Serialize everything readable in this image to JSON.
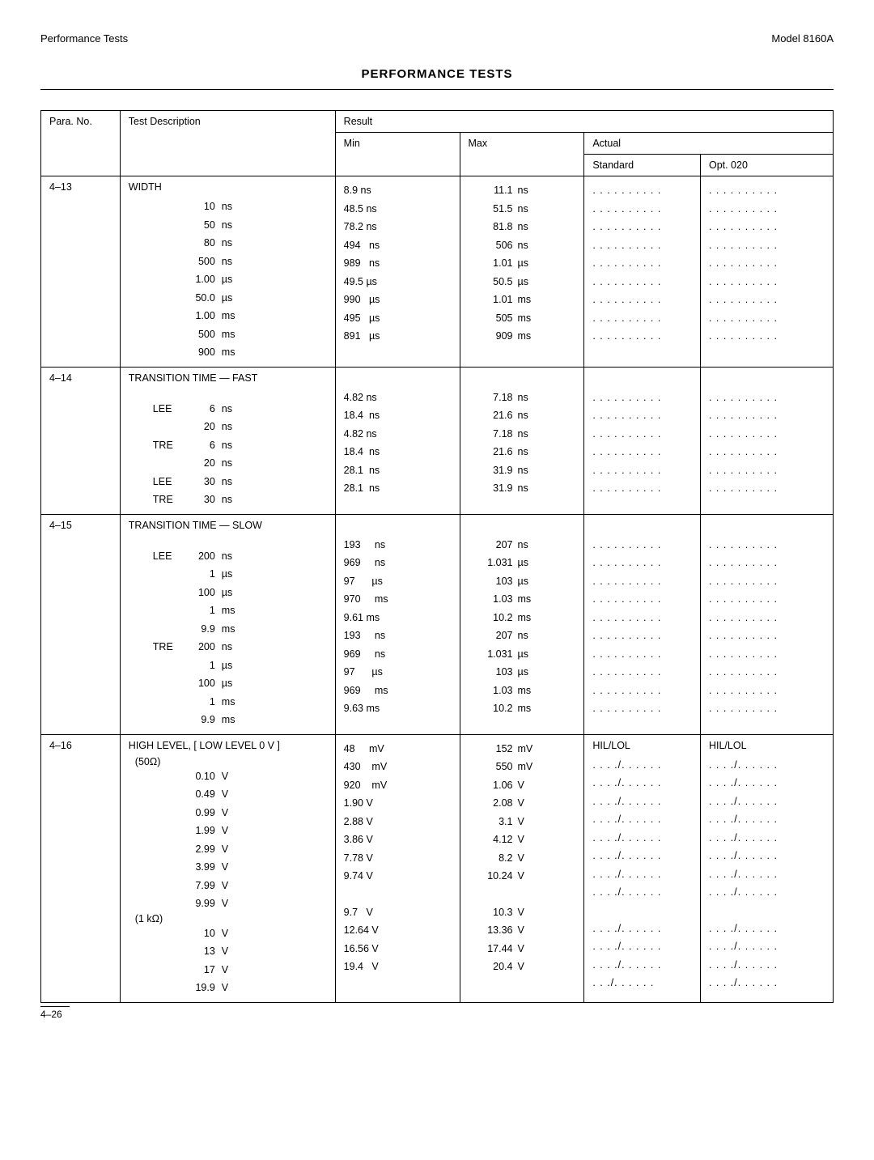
{
  "header": {
    "left": "Performance Tests",
    "right": "Model 8160A"
  },
  "title": "PERFORMANCE TESTS",
  "columns": {
    "para": "Para. No.",
    "desc": "Test Description",
    "result": "Result",
    "actual": "Actual",
    "min": "Min",
    "max": "Max",
    "standard": "Standard",
    "opt": "Opt. 020"
  },
  "sections": [
    {
      "para": "4–13",
      "heading": "WIDTH",
      "actual_header": "",
      "rows": [
        {
          "label": "",
          "dval": "10",
          "dunit": "ns",
          "min": "8.9 ns",
          "maxv": "11.1",
          "maxu": "ns",
          "a1": ". . . . . . . . . .",
          "a2": ". . . . . . . . . ."
        },
        {
          "label": "",
          "dval": "50",
          "dunit": "ns",
          "min": "48.5 ns",
          "maxv": "51.5",
          "maxu": "ns",
          "a1": ". . . . . . . . . .",
          "a2": ". . . . . . . . . ."
        },
        {
          "label": "",
          "dval": "80",
          "dunit": "ns",
          "min": "78.2 ns",
          "maxv": "81.8",
          "maxu": "ns",
          "a1": ". . . . . . . . . .",
          "a2": ". . . . . . . . . ."
        },
        {
          "label": "",
          "dval": "500",
          "dunit": "ns",
          "min": "494   ns",
          "maxv": "506",
          "maxu": "ns",
          "a1": ". . . . . . . . . .",
          "a2": ". . . . . . . . . ."
        },
        {
          "label": "",
          "dval": "1.00",
          "dunit": "µs",
          "min": "989   ns",
          "maxv": "1.01",
          "maxu": "µs",
          "a1": ". . . . . . . . . .",
          "a2": ". . . . . . . . . ."
        },
        {
          "label": "",
          "dval": "50.0",
          "dunit": "µs",
          "min": "49.5 µs",
          "maxv": "50.5",
          "maxu": "µs",
          "a1": ". . . . . . . . . .",
          "a2": ". . . . . . . . . ."
        },
        {
          "label": "",
          "dval": "1.00",
          "dunit": "ms",
          "min": "990   µs",
          "maxv": "1.01",
          "maxu": "ms",
          "a1": ". . . . . . . . . .",
          "a2": ". . . . . . . . . ."
        },
        {
          "label": "",
          "dval": "500",
          "dunit": "ms",
          "min": "495   µs",
          "maxv": "505",
          "maxu": "ms",
          "a1": ". . . . . . . . . .",
          "a2": ". . . . . . . . . ."
        },
        {
          "label": "",
          "dval": "900",
          "dunit": "ms",
          "min": "891   µs",
          "maxv": "909",
          "maxu": "ms",
          "a1": ". . . . . . . . . .",
          "a2": ". . . . . . . . . ."
        }
      ]
    },
    {
      "para": "4–14",
      "heading": "TRANSITION TIME — FAST",
      "spacer": true,
      "rows": [
        {
          "label": "LEE",
          "dval": "6",
          "dunit": "ns",
          "min": "4.82 ns",
          "maxv": "7.18",
          "maxu": "ns",
          "a1": ". . . . . . . . . .",
          "a2": ". . . . . . . . . ."
        },
        {
          "label": "",
          "dval": "20",
          "dunit": "ns",
          "min": "18.4  ns",
          "maxv": "21.6",
          "maxu": "ns",
          "a1": ". . . . . . . . . .",
          "a2": ". . . . . . . . . ."
        },
        {
          "label": "TRE",
          "dval": "6",
          "dunit": "ns",
          "min": "4.82 ns",
          "maxv": "7.18",
          "maxu": "ns",
          "a1": ". . . . . . . . . .",
          "a2": ". . . . . . . . . ."
        },
        {
          "label": "",
          "dval": "20",
          "dunit": "ns",
          "min": "18.4  ns",
          "maxv": "21.6",
          "maxu": "ns",
          "a1": ". . . . . . . . . .",
          "a2": ". . . . . . . . . ."
        },
        {
          "label": "LEE",
          "dval": "30",
          "dunit": "ns",
          "min": "28.1  ns",
          "maxv": "31.9",
          "maxu": "ns",
          "a1": ". . . . . . . . . .",
          "a2": ". . . . . . . . . ."
        },
        {
          "label": "TRE",
          "dval": "30",
          "dunit": "ns",
          "min": "28.1  ns",
          "maxv": "31.9",
          "maxu": "ns",
          "a1": ". . . . . . . . . .",
          "a2": ". . . . . . . . . ."
        }
      ]
    },
    {
      "para": "4–15",
      "heading": "TRANSITION TIME — SLOW",
      "spacer": true,
      "rows": [
        {
          "label": "LEE",
          "dval": "200",
          "dunit": "ns",
          "min": "193     ns",
          "maxv": "207",
          "maxu": "ns",
          "a1": ". . . . . . . . . .",
          "a2": ". . . . . . . . . ."
        },
        {
          "label": "",
          "dval": "1",
          "dunit": "µs",
          "min": "969     ns",
          "maxv": "1.031",
          "maxu": "µs",
          "a1": ". . . . . . . . . .",
          "a2": ". . . . . . . . . ."
        },
        {
          "label": "",
          "dval": "100",
          "dunit": "µs",
          "min": "97      µs",
          "maxv": "103",
          "maxu": "µs",
          "a1": ". . . . . . . . . .",
          "a2": ". . . . . . . . . ."
        },
        {
          "label": "",
          "dval": "1",
          "dunit": "ms",
          "min": "970     ms",
          "maxv": "1.03",
          "maxu": "ms",
          "a1": ". . . . . . . . . .",
          "a2": ". . . . . . . . . ."
        },
        {
          "label": "",
          "dval": "9.9",
          "dunit": "ms",
          "min": "9.61 ms",
          "maxv": "10.2",
          "maxu": "ms",
          "a1": ". . . . . . . . . .",
          "a2": ". . . . . . . . . ."
        },
        {
          "label": "TRE",
          "dval": "200",
          "dunit": "ns",
          "min": "193     ns",
          "maxv": "207",
          "maxu": "ns",
          "a1": ". . . . . . . . . .",
          "a2": ". . . . . . . . . ."
        },
        {
          "label": "",
          "dval": "1",
          "dunit": "µs",
          "min": "969     ns",
          "maxv": "1.031",
          "maxu": "µs",
          "a1": ". . . . . . . . . .",
          "a2": ". . . . . . . . . ."
        },
        {
          "label": "",
          "dval": "100",
          "dunit": "µs",
          "min": "97      µs",
          "maxv": "103",
          "maxu": "µs",
          "a1": ". . . . . . . . . .",
          "a2": ". . . . . . . . . ."
        },
        {
          "label": "",
          "dval": "1",
          "dunit": "ms",
          "min": "969     ms",
          "maxv": "1.03",
          "maxu": "ms",
          "a1": ". . . . . . . . . .",
          "a2": ". . . . . . . . . ."
        },
        {
          "label": "",
          "dval": "9.9",
          "dunit": "ms",
          "min": "9.63 ms",
          "maxv": "10.2",
          "maxu": "ms",
          "a1": ". . . . . . . . . .",
          "a2": ". . . . . . . . . ."
        }
      ]
    },
    {
      "para": "4–16",
      "heading": "HIGH LEVEL, [ LOW LEVEL 0 V ]",
      "sub": "(50Ω)",
      "actual_hdr1": "HIL/LOL",
      "actual_hdr2": "HIL/LOL",
      "rows": [
        {
          "label": "",
          "dval": "0.10",
          "dunit": "V",
          "min": "48     mV",
          "maxv": "152",
          "maxu": "mV",
          "a1": ". . . ./. . . . . .",
          "a2": ". . . ./. . . . . ."
        },
        {
          "label": "",
          "dval": "0.49",
          "dunit": "V",
          "min": "430    mV",
          "maxv": "550",
          "maxu": "mV",
          "a1": ". . . ./. . . . . .",
          "a2": ". . . ./. . . . . ."
        },
        {
          "label": "",
          "dval": "0.99",
          "dunit": "V",
          "min": "920    mV",
          "maxv": "1.06",
          "maxu": "V",
          "a1": ". . . ./. . . . . .",
          "a2": ". . . ./. . . . . ."
        },
        {
          "label": "",
          "dval": "1.99",
          "dunit": "V",
          "min": "1.90 V",
          "maxv": "2.08",
          "maxu": "V",
          "a1": ". . . ./. . . . . .",
          "a2": ". . . ./. . . . . ."
        },
        {
          "label": "",
          "dval": "2.99",
          "dunit": "V",
          "min": "2.88 V",
          "maxv": "3.1",
          "maxu": "V",
          "a1": ". . . ./. . . . . .",
          "a2": ". . . ./. . . . . ."
        },
        {
          "label": "",
          "dval": "3.99",
          "dunit": "V",
          "min": "3.86 V",
          "maxv": "4.12",
          "maxu": "V",
          "a1": ". . . ./. . . . . .",
          "a2": ". . . ./. . . . . ."
        },
        {
          "label": "",
          "dval": "7.99",
          "dunit": "V",
          "min": "7.78 V",
          "maxv": "8.2",
          "maxu": "V",
          "a1": ". . . ./. . . . . .",
          "a2": ". . . ./. . . . . ."
        },
        {
          "label": "",
          "dval": "9.99",
          "dunit": "V",
          "min": "9.74 V",
          "maxv": "10.24",
          "maxu": "V",
          "a1": ". . . ./. . . . . .",
          "a2": ". . . ./. . . . . ."
        }
      ],
      "sub2": "(1 kΩ)",
      "rows2": [
        {
          "label": "",
          "dval": "10",
          "dunit": "V",
          "min": "9.7   V",
          "maxv": "10.3",
          "maxu": "V",
          "a1": ". . . ./. . . . . .",
          "a2": ". . . ./. . . . . ."
        },
        {
          "label": "",
          "dval": "13",
          "dunit": "V",
          "min": "12.64 V",
          "maxv": "13.36",
          "maxu": "V",
          "a1": ". . . ./. . . . . .",
          "a2": ". . . ./. . . . . ."
        },
        {
          "label": "",
          "dval": "17",
          "dunit": "V",
          "min": "16.56 V",
          "maxv": "17.44",
          "maxu": "V",
          "a1": ". . . ./. . . . . .",
          "a2": ". . . ./. . . . . ."
        },
        {
          "label": "",
          "dval": "19.9",
          "dunit": "V",
          "min": "19.4   V",
          "maxv": "20.4",
          "maxu": "V",
          "a1": ". .  ./. . . . . .",
          "a2": ". . . ./. . . . . ."
        }
      ]
    }
  ],
  "page": "4–26"
}
